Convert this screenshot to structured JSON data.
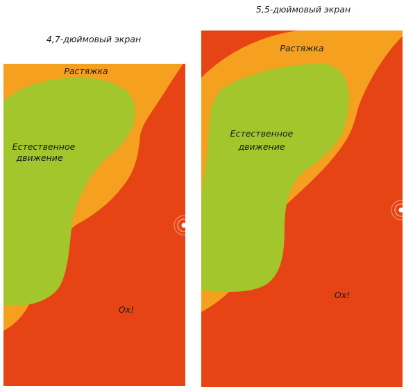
{
  "colors": {
    "background": "#ffffff",
    "hard_zone": "#E64414",
    "stretch_zone": "#F5A01E",
    "natural_zone": "#A2C62C",
    "indicator": "#ffffff"
  },
  "screens": [
    {
      "title": "4,7-дюймовый экран",
      "zones": {
        "stretch": "Растяжка",
        "natural_line1": "Естественное",
        "natural_line2": "движение",
        "hard": "Ох!"
      }
    },
    {
      "title": "5,5-дюймовый экран",
      "zones": {
        "stretch": "Растяжка",
        "natural_line1": "Естественное",
        "natural_line2": "движение",
        "hard": "Ох!"
      }
    }
  ]
}
